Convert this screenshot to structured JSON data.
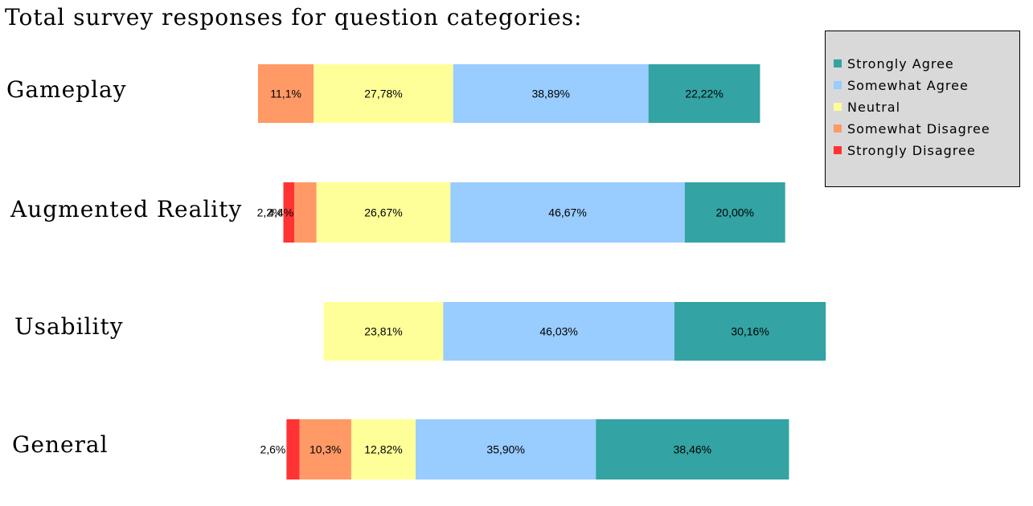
{
  "chart_data": {
    "type": "bar",
    "orientation": "horizontal",
    "stacked": true,
    "title": "Total survey responses for question categories:",
    "categories": [
      "Gameplay",
      "Augmented Reality",
      "Usability",
      "General"
    ],
    "series": [
      {
        "name": "Strongly Disagree",
        "color": "#ff3333",
        "values": [
          0,
          2.2,
          0,
          2.6
        ],
        "labels": [
          "",
          "2,2%",
          "",
          "2,6%"
        ]
      },
      {
        "name": "Somewhat Disagree",
        "color": "#ff9966",
        "values": [
          11.1,
          4.4,
          0,
          10.3
        ],
        "labels": [
          "11,1%",
          "4,4%",
          "",
          "10,3%"
        ]
      },
      {
        "name": "Neutral",
        "color": "#ffff99",
        "values": [
          27.78,
          26.67,
          23.81,
          12.82
        ],
        "labels": [
          "27,78%",
          "26,67%",
          "23,81%",
          "12,82%"
        ]
      },
      {
        "name": "Somewhat Agree",
        "color": "#99ccff",
        "values": [
          38.89,
          46.67,
          46.03,
          35.9
        ],
        "labels": [
          "38,89%",
          "46,67%",
          "46,03%",
          "35,90%"
        ]
      },
      {
        "name": "Strongly Agree",
        "color": "#33a3a3",
        "values": [
          22.22,
          20.0,
          30.16,
          38.46
        ],
        "labels": [
          "22,22%",
          "20,00%",
          "30,16%",
          "38,46%"
        ]
      }
    ],
    "legend": {
      "placement": "top-right",
      "order": [
        "Strongly Agree",
        "Somewhat Agree",
        "Neutral",
        "Somewhat Disagree",
        "Strongly Disagree"
      ],
      "background": "#d9d9d9"
    },
    "alignment": "diverging-centered-on-neutral"
  }
}
